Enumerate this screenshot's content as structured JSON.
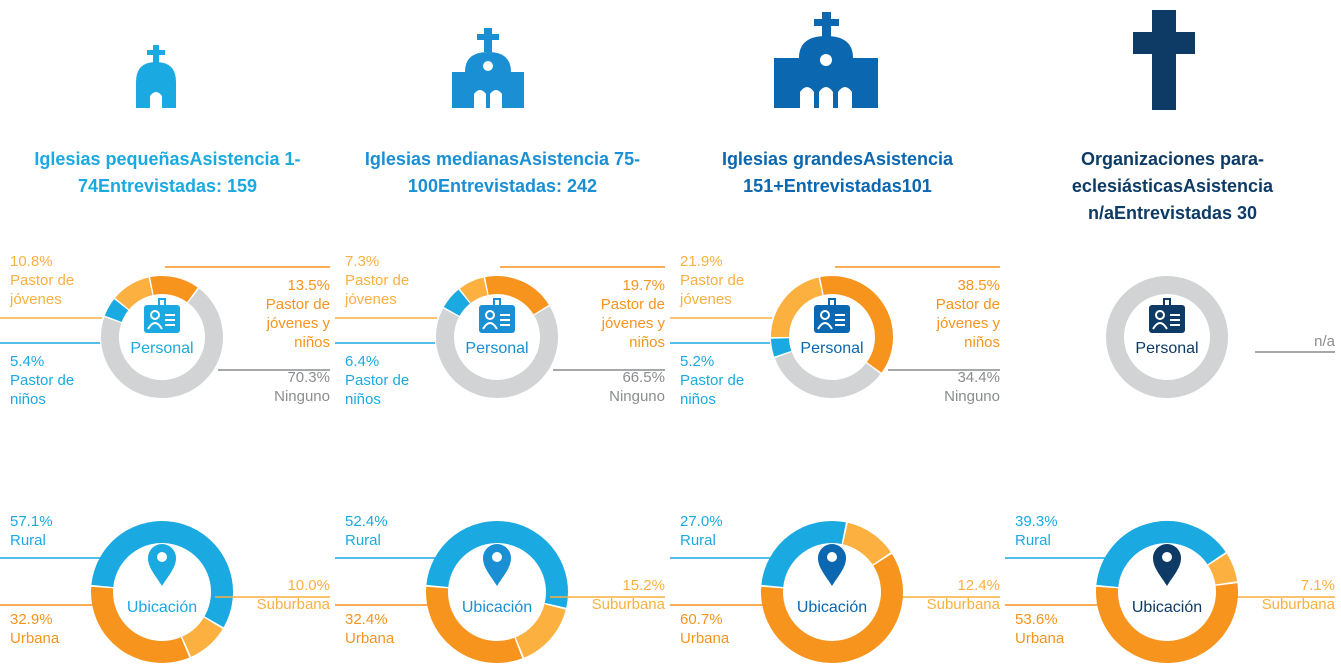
{
  "columns": [
    {
      "title": [
        "Iglesias pequeñas",
        "Asistencia 1-74",
        "Entrevistadas: 159"
      ]
    },
    {
      "title": [
        "Iglesias medianas",
        "Asistencia 75-100",
        "Entrevistadas: 242"
      ]
    },
    {
      "title": [
        "Iglesias grandes",
        "Asistencia 151+",
        "Entrevistadas101"
      ]
    },
    {
      "title": [
        "Organizaciones para-eclesiásticas",
        "Asistencia n/a",
        "Entrevistadas 30"
      ]
    }
  ],
  "chart_data": [
    {
      "type": "donut",
      "center_label": "Personal",
      "categories": [
        "Pastor de jóvenes y niños",
        "Ninguno",
        "Pastor de niños",
        "Pastor de jóvenes"
      ],
      "values": [
        13.5,
        70.3,
        5.4,
        10.8
      ],
      "value_labels": [
        "13.5%",
        "70.3%",
        "5.4%",
        "10.8%"
      ],
      "colors": [
        "#f7941d",
        "#d1d3d4",
        "#1ba9e1",
        "#fbb040"
      ]
    },
    {
      "type": "donut",
      "center_label": "Ubicación",
      "categories": [
        "Rural",
        "Suburbana",
        "Urbana"
      ],
      "values": [
        57.1,
        10.0,
        32.9
      ],
      "value_labels": [
        "57.1%",
        "10.0%",
        "32.9%"
      ],
      "colors": [
        "#1ba9e1",
        "#fbb040",
        "#f7941d"
      ]
    },
    {
      "type": "donut",
      "center_label": "Personal",
      "categories": [
        "Pastor de jóvenes y niños",
        "Ninguno",
        "Pastor de niños",
        "Pastor de jóvenes"
      ],
      "values": [
        19.7,
        66.5,
        6.4,
        7.3
      ],
      "value_labels": [
        "19.7%",
        "66.5%",
        "6.4%",
        "7.3%"
      ],
      "colors": [
        "#f7941d",
        "#d1d3d4",
        "#1ba9e1",
        "#fbb040"
      ]
    },
    {
      "type": "donut",
      "center_label": "Ubicación",
      "categories": [
        "Rural",
        "Suburbana",
        "Urbana"
      ],
      "values": [
        52.4,
        15.2,
        32.4
      ],
      "value_labels": [
        "52.4%",
        "15.2%",
        "32.4%"
      ],
      "colors": [
        "#1ba9e1",
        "#fbb040",
        "#f7941d"
      ]
    },
    {
      "type": "donut",
      "center_label": "Personal",
      "categories": [
        "Pastor de jóvenes y niños",
        "Ninguno",
        "Pastor de niños",
        "Pastor de jóvenes"
      ],
      "values": [
        38.5,
        34.4,
        5.2,
        21.9
      ],
      "value_labels": [
        "38.5%",
        "34.4%",
        "5.2%",
        "21.9%"
      ],
      "colors": [
        "#f7941d",
        "#d1d3d4",
        "#1ba9e1",
        "#fbb040"
      ]
    },
    {
      "type": "donut",
      "center_label": "Ubicación",
      "categories": [
        "Rural",
        "Suburbana",
        "Urbana"
      ],
      "values": [
        27.0,
        12.4,
        60.7
      ],
      "value_labels": [
        "27.0%",
        "12.4%",
        "60.7%"
      ],
      "colors": [
        "#1ba9e1",
        "#fbb040",
        "#f7941d"
      ]
    },
    {
      "type": "donut",
      "center_label": "Personal",
      "note": "n/a",
      "ring_color": "#d1d3d4"
    },
    {
      "type": "donut",
      "center_label": "Ubicación",
      "categories": [
        "Rural",
        "Suburbana",
        "Urbana"
      ],
      "values": [
        39.3,
        7.1,
        53.6
      ],
      "value_labels": [
        "39.3%",
        "7.1%",
        "53.6%"
      ],
      "colors": [
        "#1ba9e1",
        "#fbb040",
        "#f7941d"
      ]
    }
  ]
}
